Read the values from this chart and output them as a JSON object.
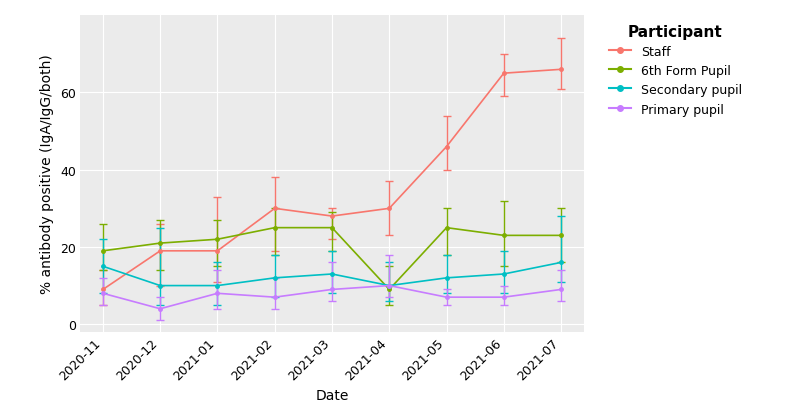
{
  "dates": [
    "2020-11",
    "2020-12",
    "2021-01",
    "2021-02",
    "2021-03",
    "2021-04",
    "2021-05",
    "2021-06",
    "2021-07"
  ],
  "series": {
    "Staff": {
      "y": [
        9,
        19,
        19,
        30,
        28,
        30,
        46,
        65,
        66
      ],
      "y_lo": [
        5,
        10,
        11,
        19,
        22,
        23,
        40,
        59,
        61
      ],
      "y_hi": [
        14,
        26,
        33,
        38,
        30,
        37,
        54,
        70,
        74
      ],
      "color": "#F8766D"
    },
    "6th Form Pupil": {
      "y": [
        19,
        21,
        22,
        25,
        25,
        9,
        25,
        23,
        23
      ],
      "y_lo": [
        14,
        14,
        15,
        18,
        19,
        5,
        18,
        15,
        16
      ],
      "y_hi": [
        26,
        27,
        27,
        30,
        29,
        15,
        30,
        32,
        30
      ],
      "color": "#7CAE00"
    },
    "Secondary pupil": {
      "y": [
        15,
        10,
        10,
        12,
        13,
        10,
        12,
        13,
        16
      ],
      "y_lo": [
        8,
        5,
        5,
        7,
        8,
        6,
        8,
        8,
        11
      ],
      "y_hi": [
        22,
        25,
        16,
        18,
        19,
        16,
        18,
        19,
        28
      ],
      "color": "#00BFC4"
    },
    "Primary pupil": {
      "y": [
        8,
        4,
        8,
        7,
        9,
        10,
        7,
        7,
        9
      ],
      "y_lo": [
        5,
        1,
        4,
        4,
        6,
        7,
        5,
        5,
        6
      ],
      "y_hi": [
        12,
        7,
        14,
        12,
        16,
        18,
        9,
        10,
        14
      ],
      "color": "#C77CFF"
    }
  },
  "series_order": [
    "Staff",
    "6th Form Pupil",
    "Secondary pupil",
    "Primary pupil"
  ],
  "ylabel": "% antibody positive (IgA/IgG/both)",
  "xlabel": "Date",
  "legend_title": "Participant",
  "ylim": [
    -2,
    80
  ],
  "yticks": [
    0,
    20,
    40,
    60
  ],
  "background_color": "#EBEBEB",
  "grid_color": "#FFFFFF",
  "axis_fontsize": 10,
  "tick_fontsize": 9,
  "legend_fontsize": 9,
  "legend_title_fontsize": 11
}
